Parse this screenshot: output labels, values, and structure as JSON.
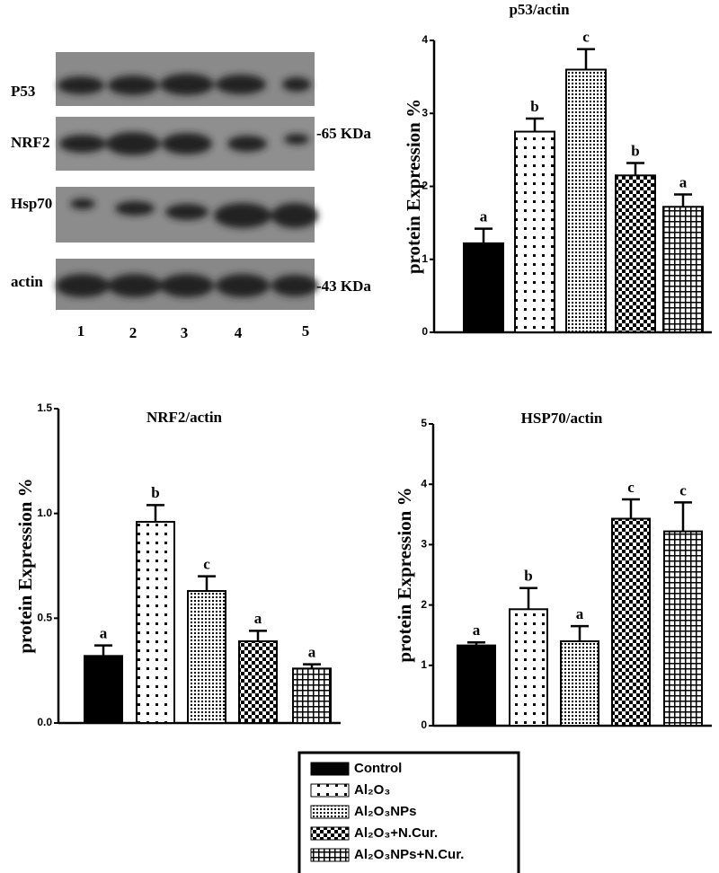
{
  "blot": {
    "rows": [
      "P53",
      "NRF2",
      "Hsp70",
      "actin"
    ],
    "markers": [
      "-65 KDa",
      "-43 KDa"
    ],
    "lanes": [
      "1",
      "2",
      "3",
      "4",
      "5"
    ]
  },
  "legend": {
    "entries": [
      "Control",
      "Al₂O₃",
      "Al₂O₃NPs",
      "Al₂O₃+N.Cur.",
      "Al₂O₃NPs+N.Cur."
    ]
  },
  "chart_data": [
    {
      "type": "bar",
      "title": "p53/actin",
      "y_label": "protein Expression %",
      "color": "#000000",
      "values": [
        1.22,
        2.75,
        3.6,
        2.15,
        1.72
      ],
      "errors": [
        0.2,
        0.18,
        0.28,
        0.17,
        0.17
      ],
      "annotations": [
        "a",
        "b",
        "c",
        "b",
        "a"
      ],
      "ylim": [
        0,
        4
      ],
      "yticks": [
        0,
        1,
        2,
        3,
        4
      ]
    },
    {
      "type": "bar",
      "title": "NRF2/actin",
      "y_label": "protein Expression %",
      "color": "#000000",
      "values": [
        0.32,
        0.96,
        0.63,
        0.39,
        0.26
      ],
      "errors": [
        0.05,
        0.08,
        0.07,
        0.05,
        0.02
      ],
      "annotations": [
        "a",
        "b",
        "c",
        "a",
        "a"
      ],
      "ylim": [
        0,
        1.5
      ],
      "yticks": [
        {
          "value": 0,
          "label": "0.0"
        },
        0.5,
        {
          "value": 1,
          "label": "1.0"
        },
        1.5
      ]
    },
    {
      "type": "bar",
      "title": "HSP70/actin",
      "y_label": "protein Expression %",
      "color": "#000000",
      "values": [
        1.33,
        1.93,
        1.4,
        3.43,
        3.22
      ],
      "errors": [
        0.05,
        0.35,
        0.25,
        0.32,
        0.48
      ],
      "annotations": [
        "a",
        "b",
        "a",
        "c",
        "c"
      ],
      "ylim": [
        0,
        5
      ],
      "yticks": [
        0,
        1,
        2,
        3,
        4,
        5
      ]
    }
  ]
}
